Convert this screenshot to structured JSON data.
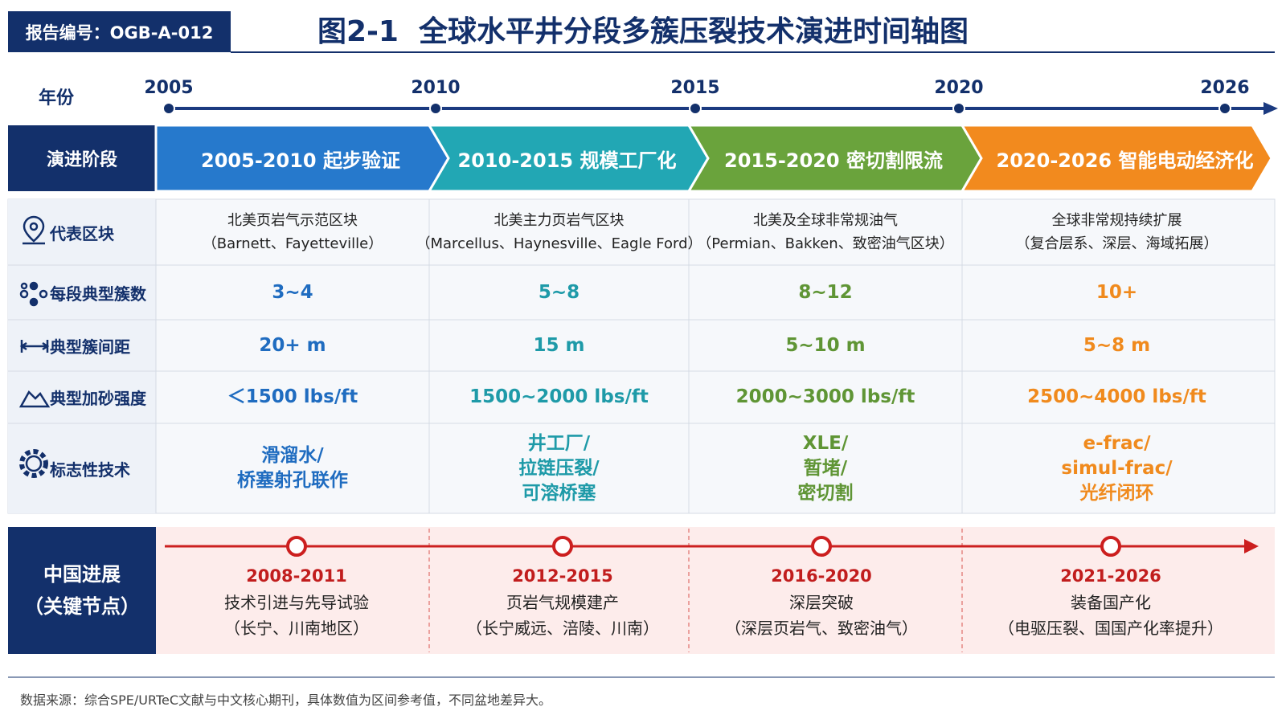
{
  "header": {
    "report_id": "报告编号：OGB-A-012",
    "title": "图2-1  全球水平井分段多簇压裂技术演进时间轴图"
  },
  "timeline": {
    "label": "年份",
    "years": [
      "2005",
      "2010",
      "2015",
      "2020",
      "2026"
    ]
  },
  "stages": {
    "label": "演进阶段",
    "items": [
      "2005-2010 起步验证",
      "2010-2015 规模工厂化",
      "2015-2020 密切割限流",
      "2020-2026 智能电动经济化"
    ]
  },
  "rows": [
    {
      "label": "代表区块",
      "cells": [
        [
          "北美页岩气示范区块",
          "（Barnett、Fayetteville）"
        ],
        [
          "北美主力页岩气区块",
          "（Marcellus、Haynesville、Eagle Ford）"
        ],
        [
          "北美及全球非常规油气",
          "（Permian、Bakken、致密油气区块）"
        ],
        [
          "全球非常规持续扩展",
          "（复合层系、深层、海域拓展）"
        ]
      ]
    },
    {
      "label": "每段典型簇数",
      "cells": [
        [
          "3~4"
        ],
        [
          "5~8"
        ],
        [
          "8~12"
        ],
        [
          "10+"
        ]
      ]
    },
    {
      "label": "典型簇间距",
      "cells": [
        [
          "20+ m"
        ],
        [
          "15 m"
        ],
        [
          "5~10 m"
        ],
        [
          "5~8 m"
        ]
      ]
    },
    {
      "label": "典型加砂强度",
      "cells": [
        [
          "＜1500 lbs/ft"
        ],
        [
          "1500~2000 lbs/ft"
        ],
        [
          "2000~3000 lbs/ft"
        ],
        [
          "2500~4000 lbs/ft"
        ]
      ]
    },
    {
      "label": "标志性技术",
      "cells": [
        [
          "滑溜水/",
          "桥塞射孔联作"
        ],
        [
          "井工厂/",
          "拉链压裂/",
          "可溶桥塞"
        ],
        [
          "XLE/",
          "暂堵/",
          "密切割"
        ],
        [
          "e-frac/",
          "simul-frac/",
          "光纤闭环"
        ]
      ]
    }
  ],
  "china": {
    "label": [
      "中国进展",
      "（关键节点）"
    ],
    "nodes": [
      {
        "period": "2008-2011",
        "title": "技术引进与先导试验",
        "detail": "（长宁、川南地区）"
      },
      {
        "period": "2012-2015",
        "title": "页岩气规模建产",
        "detail": "（长宁威远、涪陵、川南）"
      },
      {
        "period": "2016-2020",
        "title": "深层突破",
        "detail": "（深层页岩气、致密油气）"
      },
      {
        "period": "2021-2026",
        "title": "装备国产化",
        "detail": "（电驱压裂、国国产化率提升）"
      }
    ]
  },
  "source": "数据来源：综合SPE/URTeC文献与中文核心期刊，具体数值为区间参考值，不同盆地差异大。"
}
